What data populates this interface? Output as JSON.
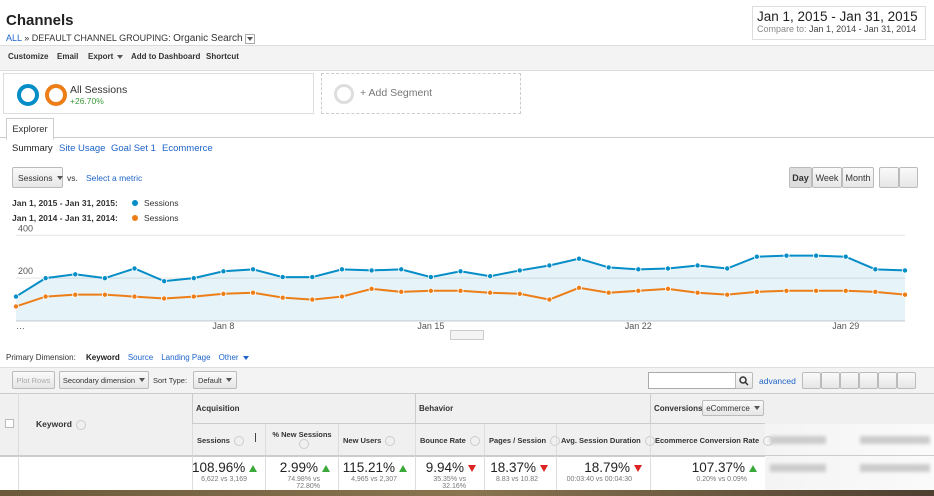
{
  "header": {
    "title": "Channels",
    "breadcrumb_all": "ALL",
    "breadcrumb_sep": "»",
    "breadcrumb": "DEFAULT CHANNEL GROUPING:",
    "dimension_value": "Organic Search",
    "date_range": "Jan 1, 2015 - Jan 31, 2015",
    "compare_label": "Compare to:",
    "compare_range": "Jan 1, 2014 - Jan 31, 2014"
  },
  "toolbar": [
    "Customize",
    "Email",
    "Export",
    "Add to Dashboard",
    "Shortcut"
  ],
  "segments": {
    "name": "All Sessions",
    "change": "+26.70%",
    "add": "+ Add Segment"
  },
  "tab": "Explorer",
  "subtabs": [
    "Summary",
    "Site Usage",
    "Goal Set 1",
    "Ecommerce"
  ],
  "metric": {
    "selected": "Sessions",
    "vs": "vs.",
    "select": "Select a metric"
  },
  "granularity": [
    "Day",
    "Week",
    "Month"
  ],
  "chart_data": {
    "type": "line",
    "categories": [
      "…",
      null,
      null,
      null,
      null,
      null,
      null,
      "Jan 8",
      null,
      null,
      null,
      null,
      null,
      null,
      "Jan 15",
      null,
      null,
      null,
      null,
      null,
      null,
      "Jan 22",
      null,
      null,
      null,
      null,
      null,
      null,
      "Jan 29",
      null,
      null
    ],
    "series": [
      {
        "name": "Sessions",
        "period": "Jan 1, 2015 - Jan 31, 2015:",
        "color": "#058dc7",
        "area": true,
        "values": [
          114,
          200,
          218,
          200,
          245,
          186,
          200,
          232,
          241,
          205,
          205,
          241,
          236,
          241,
          205,
          232,
          209,
          236,
          259,
          291,
          250,
          241,
          245,
          259,
          245,
          300,
          305,
          305,
          300,
          241,
          236
        ]
      },
      {
        "name": "Sessions",
        "period": "Jan 1, 2014 - Jan 31, 2014:",
        "color": "#ed7e17",
        "area": false,
        "values": [
          68,
          114,
          123,
          123,
          114,
          105,
          114,
          127,
          132,
          109,
          100,
          114,
          150,
          136,
          141,
          141,
          132,
          127,
          100,
          155,
          132,
          141,
          150,
          132,
          123,
          136,
          141,
          141,
          141,
          136,
          123
        ]
      }
    ],
    "ylim": [
      0,
      420
    ],
    "yticks": [
      200,
      400
    ],
    "grid": true
  },
  "dimensions": {
    "label": "Primary Dimension:",
    "options": [
      "Keyword",
      "Source",
      "Landing Page",
      "Other"
    ]
  },
  "controls": {
    "plot_rows": "Plot Rows",
    "secondary": "Secondary dimension",
    "sort_label": "Sort Type:",
    "sort": "Default",
    "advanced": "advanced"
  },
  "table": {
    "key_column": "Keyword",
    "groups": [
      "Acquisition",
      "Behavior",
      "Conversions"
    ],
    "conversion_select": "eCommerce",
    "columns": [
      "Sessions",
      "% New Sessions",
      "New Users",
      "Bounce Rate",
      "Pages / Session",
      "Avg. Session Duration",
      "Ecommerce Conversion Rate"
    ],
    "summary": [
      {
        "change": "108.96%",
        "dir": "up",
        "detail": "6,622 vs 3,169"
      },
      {
        "change": "2.99%",
        "dir": "up",
        "detail": "74.98% vs 72.80%"
      },
      {
        "change": "115.21%",
        "dir": "up",
        "detail": "4,965 vs 2,307"
      },
      {
        "change": "9.94%",
        "dir": "down",
        "detail": "35.35% vs 32.16%"
      },
      {
        "change": "18.37%",
        "dir": "down",
        "detail": "8.83 vs 10.82"
      },
      {
        "change": "18.79%",
        "dir": "down",
        "detail": "00:03:40 vs 00:04:30"
      },
      {
        "change": "107.37%",
        "dir": "up",
        "detail": "0.20% vs 0.09%"
      }
    ]
  }
}
